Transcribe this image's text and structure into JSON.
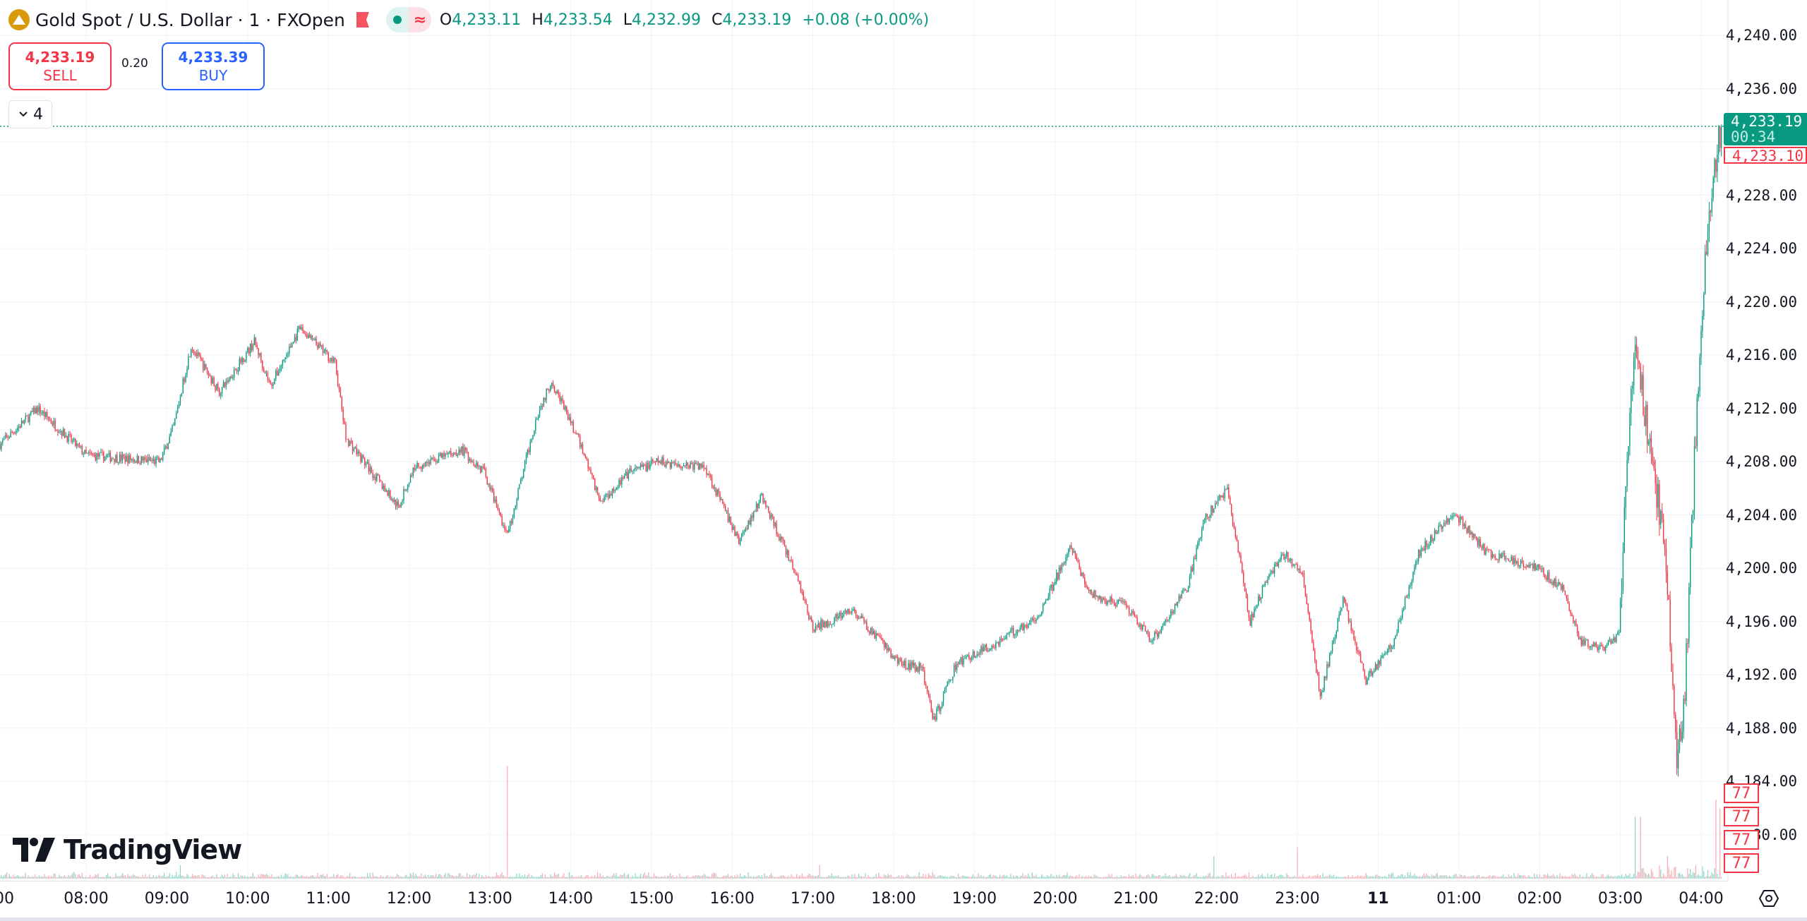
{
  "header": {
    "symbol": "Gold Spot / U.S. Dollar · 1 · FXOpen",
    "symbol_icon": "gold-bars-icon",
    "market_status_icon": "market-open-dot-icon",
    "wave_icon": "approx-wave-icon",
    "ohlc": {
      "o_label": "O",
      "o": "4,233.11",
      "h_label": "H",
      "h": "4,233.54",
      "l_label": "L",
      "l": "4,232.99",
      "c_label": "C",
      "c": "4,233.19",
      "change": "+0.08 (+0.00%)"
    }
  },
  "trade": {
    "sell_price": "4,233.19",
    "sell_label": "SELL",
    "spread": "0.20",
    "buy_price": "4,233.39",
    "buy_label": "BUY"
  },
  "indicators_toggle": {
    "count": "4",
    "icon": "chevron-down-icon"
  },
  "watermark": "TradingView",
  "price_axis": {
    "labels": [
      "4,240.00",
      "4,236.00",
      "4,228.00",
      "4,224.00",
      "4,220.00",
      "4,216.00",
      "4,212.00",
      "4,208.00",
      "4,204.00",
      "4,200.00",
      "4,196.00",
      "4,192.00",
      "4,188.00",
      "4,184.00",
      "80.00"
    ],
    "current_price": "4,233.19",
    "countdown": "00:34",
    "bid_price": "4,233.10",
    "volume_labels": [
      "77",
      "77",
      "77",
      "77"
    ]
  },
  "time_axis": {
    "labels": [
      "00",
      "08:00",
      "09:00",
      "10:00",
      "11:00",
      "12:00",
      "13:00",
      "14:00",
      "15:00",
      "16:00",
      "17:00",
      "18:00",
      "19:00",
      "20:00",
      "21:00",
      "22:00",
      "23:00",
      "11",
      "01:00",
      "02:00",
      "03:00",
      "04:00"
    ],
    "settings_icon": "gear-hexagon-icon"
  },
  "colors": {
    "up": "#089981",
    "down": "#f23645",
    "grid": "#f0f3fa",
    "up_volume": "#8cd3c8",
    "down_volume": "#f7a9b1"
  },
  "chart_data": {
    "type": "candlestick",
    "interval": "1 minute",
    "ylim": [
      4178,
      4242
    ],
    "y_ticks": [
      4180,
      4184,
      4188,
      4192,
      4196,
      4200,
      4204,
      4208,
      4212,
      4216,
      4220,
      4224,
      4228,
      4236,
      4240
    ],
    "current_price": 4233.19,
    "bid_price": 4233.1,
    "grid": true,
    "approx_price_path": [
      [
        "06:56",
        4209.3
      ],
      [
        "07:24",
        4212.0
      ],
      [
        "08:00",
        4208.5
      ],
      [
        "08:55",
        4208.0
      ],
      [
        "09:05",
        4210.6
      ],
      [
        "09:18",
        4216.7
      ],
      [
        "09:39",
        4213.2
      ],
      [
        "10:05",
        4217.0
      ],
      [
        "10:17",
        4213.7
      ],
      [
        "10:39",
        4218.0
      ],
      [
        "11:05",
        4215.4
      ],
      [
        "11:13",
        4209.8
      ],
      [
        "11:52",
        4204.6
      ],
      [
        "12:04",
        4207.6
      ],
      [
        "12:39",
        4208.9
      ],
      [
        "12:56",
        4207.2
      ],
      [
        "13:13",
        4202.4
      ],
      [
        "13:35",
        4211.5
      ],
      [
        "13:46",
        4214.1
      ],
      [
        "14:09",
        4208.9
      ],
      [
        "14:22",
        4205.0
      ],
      [
        "14:44",
        4207.2
      ],
      [
        "15:05",
        4208.0
      ],
      [
        "15:40",
        4207.6
      ],
      [
        "16:05",
        4202.0
      ],
      [
        "16:22",
        4205.4
      ],
      [
        "16:48",
        4199.4
      ],
      [
        "17:00",
        4195.5
      ],
      [
        "17:30",
        4196.8
      ],
      [
        "18:04",
        4192.9
      ],
      [
        "18:21",
        4192.5
      ],
      [
        "18:30",
        4188.6
      ],
      [
        "18:47",
        4192.9
      ],
      [
        "19:13",
        4194.2
      ],
      [
        "19:47",
        4196.4
      ],
      [
        "20:12",
        4201.6
      ],
      [
        "20:25",
        4198.1
      ],
      [
        "20:51",
        4197.2
      ],
      [
        "21:12",
        4194.6
      ],
      [
        "21:38",
        4198.5
      ],
      [
        "21:51",
        4203.7
      ],
      [
        "22:08",
        4205.9
      ],
      [
        "22:25",
        4196.0
      ],
      [
        "22:38",
        4199.4
      ],
      [
        "22:51",
        4201.1
      ],
      [
        "23:04",
        4199.4
      ],
      [
        "23:17",
        4190.3
      ],
      [
        "23:34",
        4197.7
      ],
      [
        "23:51",
        4191.6
      ],
      [
        "00:12",
        4194.6
      ],
      [
        "00:30",
        4201.1
      ],
      [
        "00:56",
        4204.2
      ],
      [
        "01:21",
        4201.1
      ],
      [
        "01:56",
        4200.2
      ],
      [
        "02:17",
        4198.5
      ],
      [
        "02:30",
        4194.6
      ],
      [
        "02:47",
        4193.8
      ],
      [
        "02:59",
        4195.1
      ],
      [
        "03:04",
        4206.3
      ],
      [
        "03:11",
        4217.6
      ],
      [
        "03:17",
        4212.4
      ],
      [
        "03:30",
        4203.7
      ],
      [
        "03:36",
        4196.8
      ],
      [
        "03:42",
        4185.5
      ],
      [
        "03:48",
        4190.7
      ],
      [
        "03:55",
        4208.0
      ],
      [
        "04:03",
        4223.6
      ],
      [
        "04:09",
        4229.7
      ],
      [
        "04:15",
        4233.19
      ]
    ],
    "volume_spikes": [
      [
        "13:13",
        1.0
      ],
      [
        "03:11",
        0.55
      ],
      [
        "03:15",
        0.55
      ],
      [
        "03:35",
        0.2
      ],
      [
        "04:11",
        0.7
      ],
      [
        "04:14",
        0.62
      ],
      [
        "23:00",
        0.28
      ],
      [
        "21:58",
        0.2
      ],
      [
        "17:05",
        0.12
      ],
      [
        "09:10",
        0.12
      ]
    ]
  }
}
